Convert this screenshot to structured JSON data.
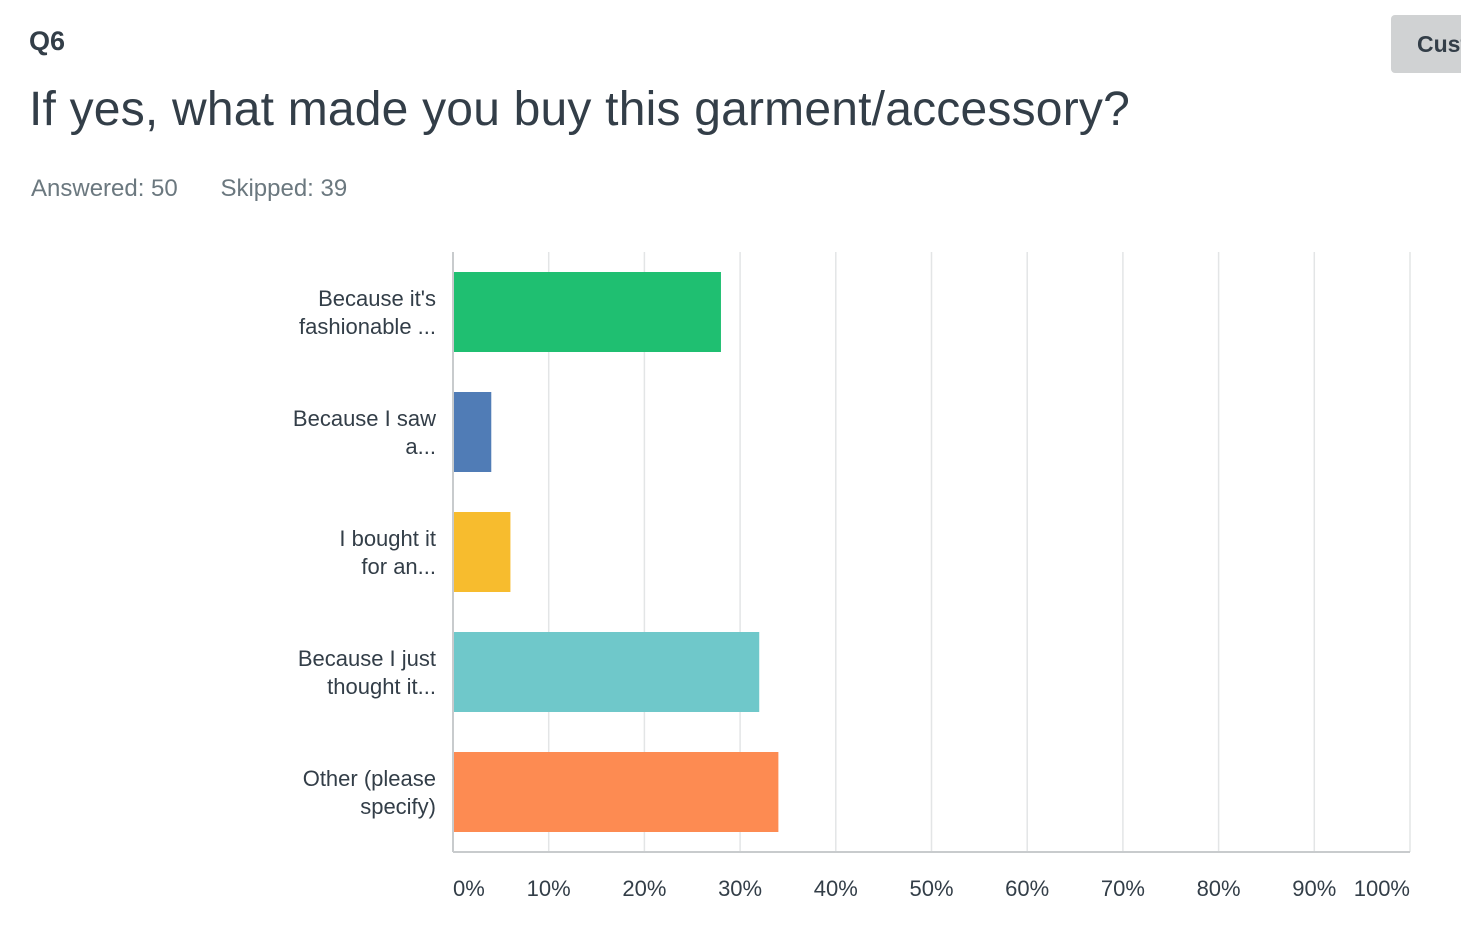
{
  "question": {
    "number": "Q6",
    "title": "If yes, what made you buy this garment/accessory?",
    "answered": "Answered: 50",
    "skipped": "Skipped: 39"
  },
  "toolbar": {
    "customize_label": "Customize"
  },
  "chart_data": {
    "type": "bar",
    "orientation": "horizontal",
    "categories": [
      [
        "Because it's",
        "fashionable ..."
      ],
      [
        "Because I saw",
        "a..."
      ],
      [
        "I bought it",
        "for an..."
      ],
      [
        "Because I just",
        "thought it..."
      ],
      [
        "Other (please",
        "specify)"
      ]
    ],
    "values": [
      28,
      4,
      6,
      32,
      34
    ],
    "colors": [
      "#1fbf71",
      "#507cb6",
      "#f7bc2e",
      "#6fc8ca",
      "#fd8b52"
    ],
    "xlim": [
      0,
      100
    ],
    "ticks": [
      "0%",
      "10%",
      "20%",
      "30%",
      "40%",
      "50%",
      "60%",
      "70%",
      "80%",
      "90%",
      "100%"
    ],
    "grid": true
  }
}
